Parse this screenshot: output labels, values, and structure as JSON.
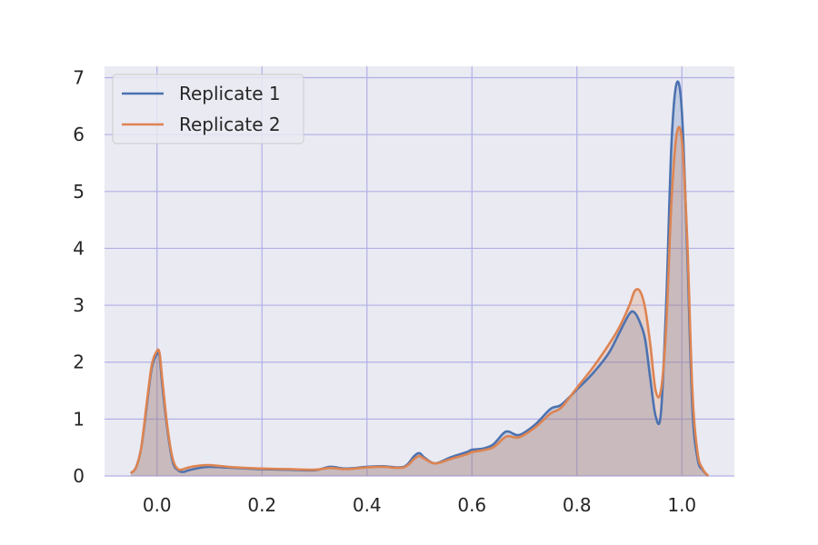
{
  "chart_data": {
    "type": "area",
    "title": "",
    "xlabel": "",
    "ylabel": "",
    "xlim": [
      -0.1,
      1.1
    ],
    "ylim": [
      0,
      7.2
    ],
    "x_ticks": [
      0.0,
      0.2,
      0.4,
      0.6,
      0.8,
      1.0
    ],
    "x_tick_labels": [
      "0.0",
      "0.2",
      "0.4",
      "0.6",
      "0.8",
      "1.0"
    ],
    "y_ticks": [
      0,
      1,
      2,
      3,
      4,
      5,
      6,
      7
    ],
    "y_tick_labels": [
      "0",
      "1",
      "2",
      "3",
      "4",
      "5",
      "6",
      "7"
    ],
    "grid": true,
    "legend_position": "top-left",
    "series": [
      {
        "name": "Replicate 1",
        "color": "#4c72b0",
        "fill": "#4c72b0",
        "x": [
          -0.05,
          -0.04,
          -0.03,
          -0.02,
          -0.01,
          0.0,
          0.005,
          0.01,
          0.02,
          0.03,
          0.04,
          0.05,
          0.06,
          0.08,
          0.1,
          0.15,
          0.2,
          0.25,
          0.3,
          0.33,
          0.36,
          0.4,
          0.43,
          0.47,
          0.49,
          0.5,
          0.51,
          0.53,
          0.56,
          0.59,
          0.6,
          0.62,
          0.64,
          0.66,
          0.67,
          0.69,
          0.72,
          0.75,
          0.77,
          0.8,
          0.83,
          0.86,
          0.88,
          0.9,
          0.91,
          0.92,
          0.93,
          0.94,
          0.95,
          0.96,
          0.97,
          0.98,
          0.99,
          1.0,
          1.01,
          1.02,
          1.03,
          1.04,
          1.05
        ],
        "y": [
          0.05,
          0.15,
          0.5,
          1.2,
          1.9,
          2.15,
          2.1,
          1.6,
          0.8,
          0.25,
          0.1,
          0.07,
          0.1,
          0.14,
          0.16,
          0.14,
          0.12,
          0.11,
          0.1,
          0.16,
          0.13,
          0.16,
          0.17,
          0.16,
          0.35,
          0.4,
          0.32,
          0.22,
          0.33,
          0.42,
          0.46,
          0.48,
          0.55,
          0.75,
          0.78,
          0.72,
          0.9,
          1.18,
          1.25,
          1.52,
          1.8,
          2.15,
          2.5,
          2.85,
          2.87,
          2.7,
          2.4,
          1.7,
          1.05,
          1.1,
          3.0,
          5.8,
          6.9,
          6.4,
          4.0,
          1.2,
          0.3,
          0.1,
          0.0
        ],
        "interpolation": "smooth"
      },
      {
        "name": "Replicate 2",
        "color": "#dd8452",
        "fill": "#dd8452",
        "x": [
          -0.05,
          -0.04,
          -0.03,
          -0.02,
          -0.01,
          0.0,
          0.005,
          0.01,
          0.02,
          0.03,
          0.04,
          0.05,
          0.06,
          0.08,
          0.1,
          0.15,
          0.2,
          0.25,
          0.3,
          0.33,
          0.36,
          0.4,
          0.43,
          0.47,
          0.49,
          0.5,
          0.51,
          0.53,
          0.56,
          0.59,
          0.6,
          0.62,
          0.64,
          0.66,
          0.67,
          0.69,
          0.72,
          0.75,
          0.77,
          0.8,
          0.83,
          0.86,
          0.88,
          0.9,
          0.91,
          0.92,
          0.93,
          0.94,
          0.95,
          0.96,
          0.97,
          0.98,
          0.99,
          1.0,
          1.01,
          1.02,
          1.03,
          1.04,
          1.05
        ],
        "y": [
          0.05,
          0.15,
          0.5,
          1.25,
          1.95,
          2.2,
          2.15,
          1.7,
          0.85,
          0.3,
          0.12,
          0.12,
          0.15,
          0.18,
          0.19,
          0.15,
          0.13,
          0.12,
          0.11,
          0.14,
          0.12,
          0.15,
          0.16,
          0.15,
          0.3,
          0.35,
          0.3,
          0.22,
          0.3,
          0.38,
          0.42,
          0.45,
          0.5,
          0.66,
          0.7,
          0.68,
          0.85,
          1.1,
          1.2,
          1.55,
          1.9,
          2.3,
          2.6,
          3.0,
          3.25,
          3.25,
          2.95,
          2.3,
          1.5,
          1.5,
          2.6,
          4.8,
          6.0,
          5.9,
          4.2,
          1.5,
          0.4,
          0.12,
          0.0
        ],
        "interpolation": "smooth"
      }
    ]
  }
}
